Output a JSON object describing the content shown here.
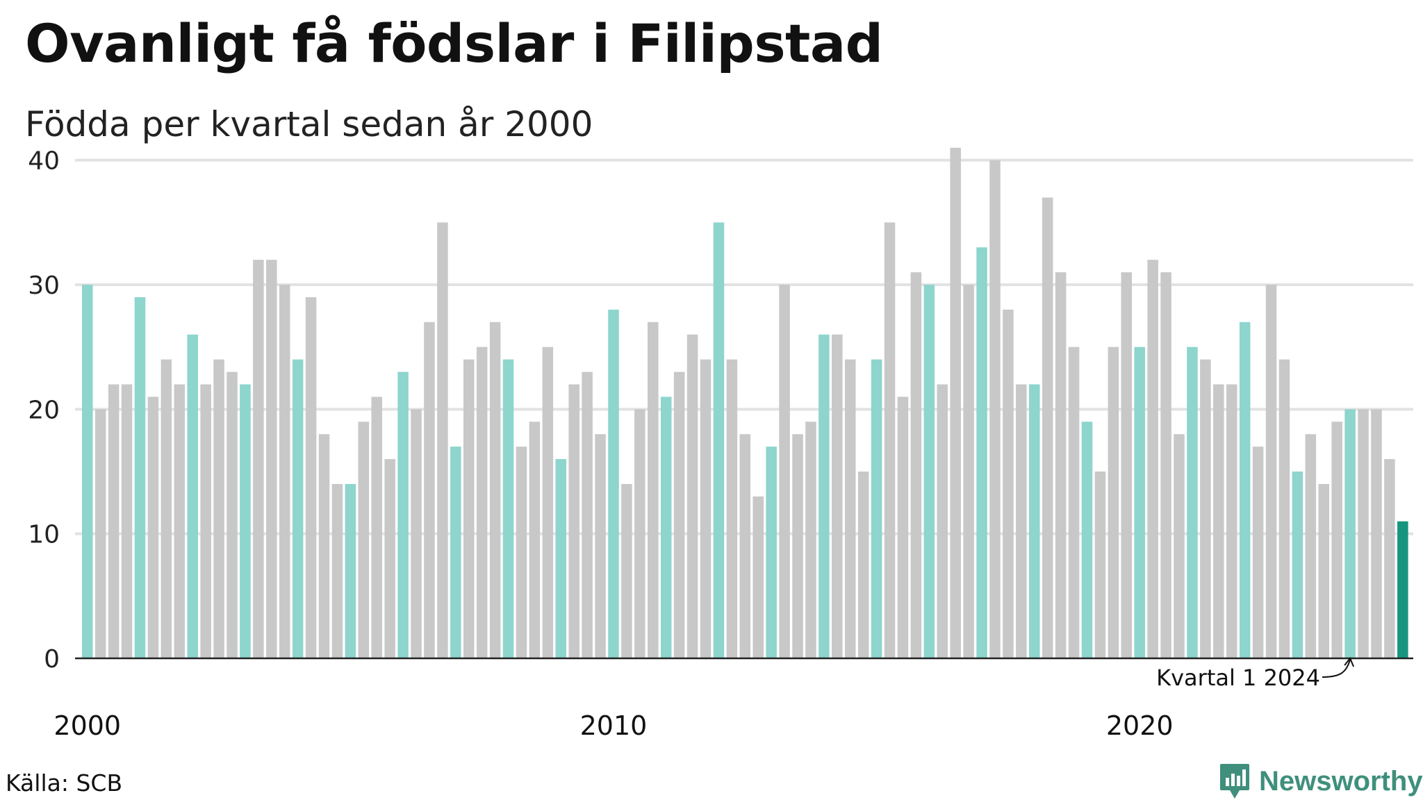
{
  "header": {
    "title": "Ovanligt få födslar i Filipstad",
    "subtitle": "Födda per kvartal sedan år 2000"
  },
  "footer": {
    "source": "Källa: SCB",
    "brand": "Newsworthy"
  },
  "colors": {
    "q1": "#8dd5cd",
    "other": "#c8c8c8",
    "latest": "#17957f",
    "grid": "#e2e2e2",
    "axis": "#222222",
    "brand": "#3f8f7c"
  },
  "icons": {
    "brand_logo": "bar-chart-badge-icon"
  },
  "chart_data": {
    "type": "bar",
    "title": "Ovanligt få födslar i Filipstad",
    "subtitle": "Födda per kvartal sedan år 2000",
    "xlabel": "",
    "ylabel": "",
    "ylim": [
      0,
      45
    ],
    "yticks": [
      0,
      10,
      20,
      30,
      40
    ],
    "xticks": [
      {
        "label": "2000",
        "index": 0
      },
      {
        "label": "2010",
        "index": 40
      },
      {
        "label": "2020",
        "index": 80
      }
    ],
    "grid": true,
    "legend": "none",
    "start": {
      "year": 2000,
      "quarter": 1
    },
    "annotation": {
      "text": "Kvartal 1 2024",
      "index": 96
    },
    "highlight_rule": "Q1 bars teal, other quarters grey, latest quarter dark teal",
    "values": [
      30,
      20,
      22,
      22,
      29,
      21,
      24,
      22,
      26,
      22,
      24,
      23,
      22,
      32,
      32,
      30,
      24,
      29,
      18,
      14,
      14,
      19,
      21,
      16,
      23,
      20,
      27,
      35,
      17,
      24,
      25,
      27,
      24,
      17,
      19,
      25,
      16,
      22,
      23,
      18,
      28,
      14,
      20,
      27,
      21,
      23,
      26,
      24,
      35,
      24,
      18,
      13,
      17,
      30,
      18,
      19,
      26,
      26,
      24,
      15,
      24,
      35,
      21,
      31,
      30,
      22,
      41,
      30,
      33,
      40,
      28,
      22,
      22,
      37,
      31,
      25,
      19,
      15,
      25,
      31,
      25,
      32,
      31,
      18,
      25,
      24,
      22,
      22,
      27,
      17,
      30,
      24,
      15,
      18,
      14,
      19,
      20,
      20,
      20,
      16,
      11
    ]
  }
}
